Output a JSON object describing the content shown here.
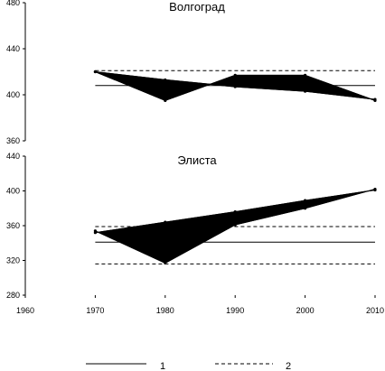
{
  "chart_data": [
    {
      "type": "area",
      "title": "Волгоград",
      "y_ticks": [
        "480",
        "440",
        "400",
        "360"
      ],
      "ylim": [
        360,
        480
      ],
      "x": [
        1970,
        1980,
        1990,
        2000,
        2010
      ],
      "series": [
        {
          "values": [
            420,
            395,
            417,
            417,
            395
          ]
        },
        {
          "values": [
            420,
            413,
            407,
            403,
            396
          ]
        }
      ],
      "reference_lines": [
        {
          "value": 408,
          "style": "solid"
        },
        {
          "value": 421,
          "style": "dashed"
        }
      ]
    },
    {
      "type": "area",
      "title": "Элиста",
      "y_ticks": [
        "440",
        "400",
        "360",
        "320",
        "280"
      ],
      "ylim": [
        280,
        440
      ],
      "x": [
        1970,
        1980,
        1990,
        2000,
        2010
      ],
      "x_ticks": [
        "1960",
        "1970",
        "1980",
        "1990",
        "2000",
        "2010"
      ],
      "xlim": [
        1960,
        2010
      ],
      "series": [
        {
          "values": [
            354,
            317,
            361,
            380,
            402
          ]
        },
        {
          "values": [
            352,
            364,
            376,
            389,
            401
          ]
        }
      ],
      "reference_lines": [
        {
          "value": 341,
          "style": "solid"
        },
        {
          "value": 316,
          "style": "dashed"
        },
        {
          "value": 359,
          "style": "dashed"
        }
      ]
    }
  ],
  "legend": {
    "placement": "bottom",
    "items": [
      {
        "label": "1",
        "style": "solid"
      },
      {
        "label": "2",
        "style": "dashed"
      }
    ]
  }
}
